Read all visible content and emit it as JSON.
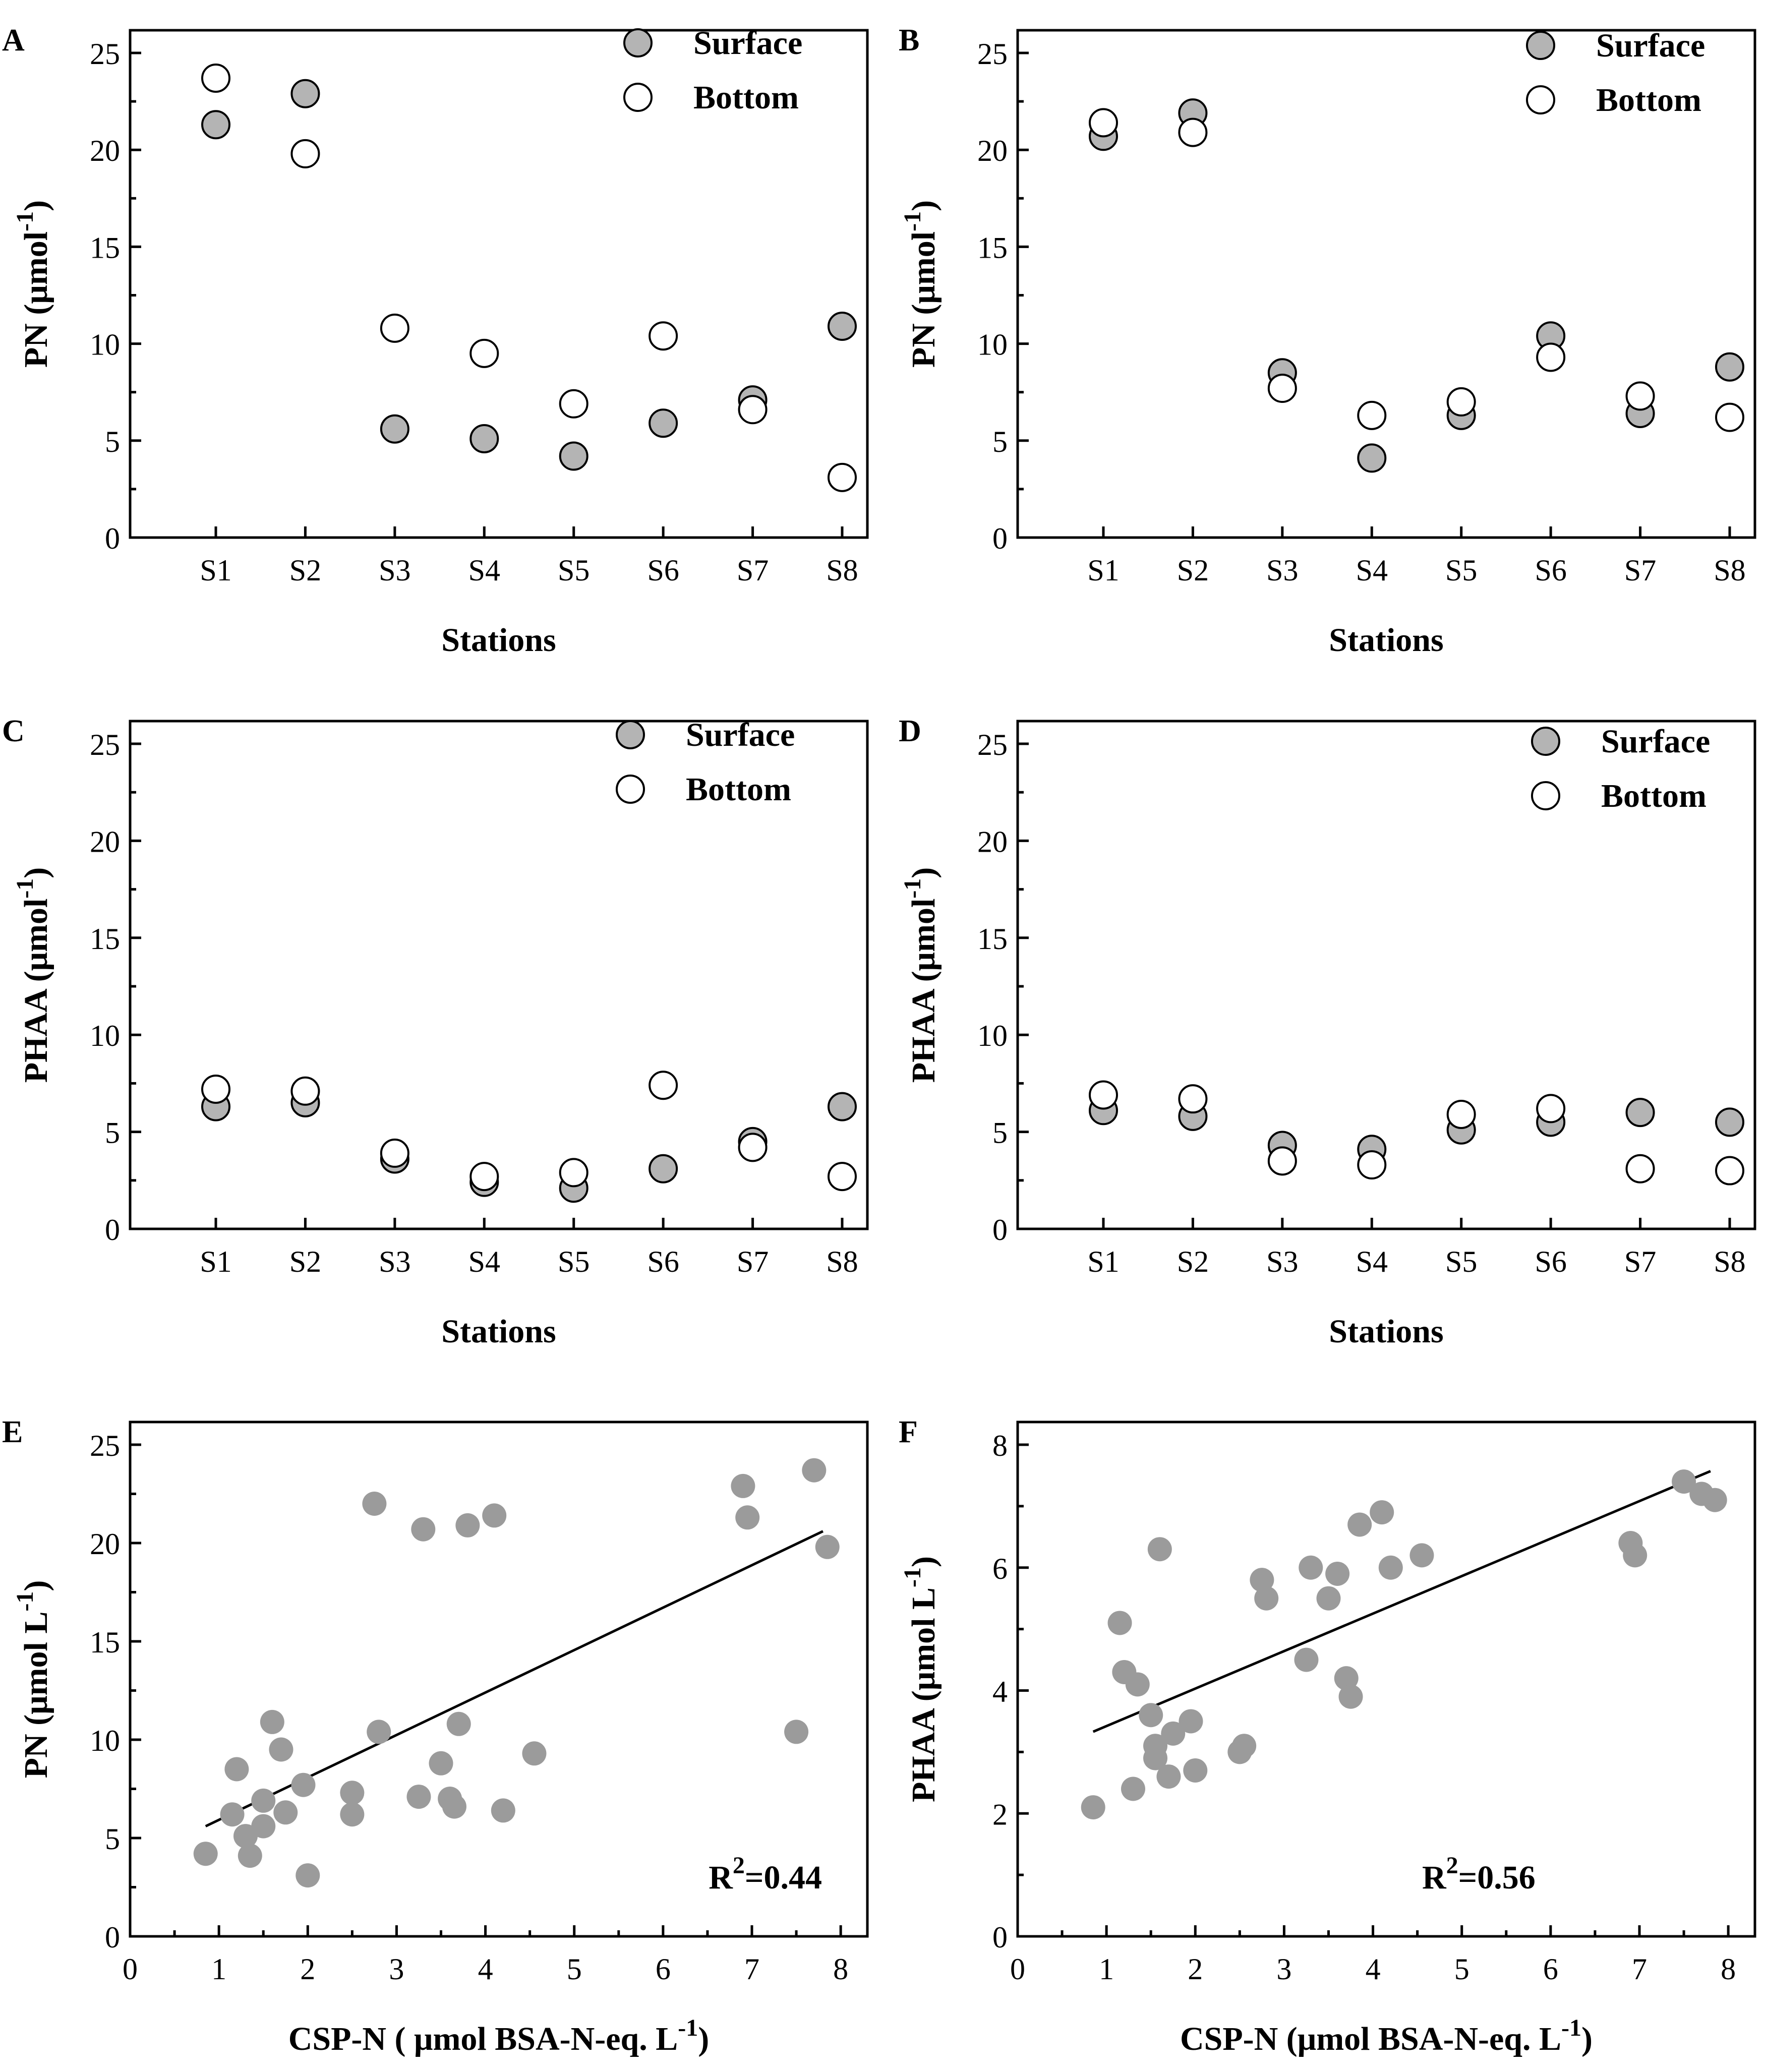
{
  "colors": {
    "surface": "#b4b4b4",
    "bottom": "#ffffff",
    "scatter": "#9b9b9b",
    "stroke": "#000000"
  },
  "chart_data": [
    {
      "panel": "A",
      "type": "scatter",
      "xlabel": "Stations",
      "ylabel": "PN (μmol",
      "ylabel_sup": "-1",
      "ylabel_tail": ")",
      "ylim": [
        0,
        25
      ],
      "yticks": [
        0,
        5,
        10,
        15,
        20,
        25
      ],
      "categories": [
        "S1",
        "S2",
        "S3",
        "S4",
        "S5",
        "S6",
        "S7",
        "S8"
      ],
      "legend_position": "top-right",
      "series": [
        {
          "name": "Surface",
          "style": "filled",
          "values": [
            21.3,
            22.9,
            5.6,
            5.1,
            4.2,
            5.9,
            7.1,
            10.9
          ]
        },
        {
          "name": "Bottom",
          "style": "open",
          "values": [
            23.7,
            19.8,
            10.8,
            9.5,
            6.9,
            10.4,
            6.6,
            3.1
          ]
        }
      ]
    },
    {
      "panel": "B",
      "type": "scatter",
      "xlabel": "Stations",
      "ylabel": "PN (μmol",
      "ylabel_sup": "-1",
      "ylabel_tail": ")",
      "ylim": [
        0,
        25
      ],
      "yticks": [
        0,
        5,
        10,
        15,
        20,
        25
      ],
      "categories": [
        "S1",
        "S2",
        "S3",
        "S4",
        "S5",
        "S6",
        "S7",
        "S8"
      ],
      "legend_position": "top-right",
      "series": [
        {
          "name": "Surface",
          "style": "filled",
          "values": [
            20.7,
            21.9,
            8.5,
            4.1,
            6.3,
            10.4,
            6.4,
            8.8
          ]
        },
        {
          "name": "Bottom",
          "style": "open",
          "values": [
            21.4,
            20.9,
            7.7,
            6.3,
            7.0,
            9.3,
            7.3,
            6.2
          ]
        }
      ]
    },
    {
      "panel": "C",
      "type": "scatter",
      "xlabel": "Stations",
      "ylabel": "PHAA (μmol",
      "ylabel_sup": "-1",
      "ylabel_tail": ")",
      "ylim": [
        0,
        25
      ],
      "yticks": [
        0,
        5,
        10,
        15,
        20,
        25
      ],
      "categories": [
        "S1",
        "S2",
        "S3",
        "S4",
        "S5",
        "S6",
        "S7",
        "S8"
      ],
      "legend_position": "top-right",
      "series": [
        {
          "name": "Surface",
          "style": "filled",
          "values": [
            6.3,
            6.5,
            3.6,
            2.4,
            2.1,
            3.1,
            4.5,
            6.3
          ]
        },
        {
          "name": "Bottom",
          "style": "open",
          "values": [
            7.2,
            7.1,
            3.9,
            2.7,
            2.9,
            7.4,
            4.2,
            2.7
          ]
        }
      ]
    },
    {
      "panel": "D",
      "type": "scatter",
      "xlabel": "Stations",
      "ylabel": "PHAA (μmol",
      "ylabel_sup": "-1",
      "ylabel_tail": ")",
      "ylim": [
        0,
        25
      ],
      "yticks": [
        0,
        5,
        10,
        15,
        20,
        25
      ],
      "categories": [
        "S1",
        "S2",
        "S3",
        "S4",
        "S5",
        "S6",
        "S7",
        "S8"
      ],
      "legend_position": "top-right",
      "series": [
        {
          "name": "Surface",
          "style": "filled",
          "values": [
            6.1,
            5.8,
            4.3,
            4.1,
            5.1,
            5.5,
            6.0,
            5.5
          ]
        },
        {
          "name": "Bottom",
          "style": "open",
          "values": [
            6.9,
            6.7,
            3.5,
            3.3,
            5.9,
            6.2,
            3.1,
            3.0
          ]
        }
      ]
    },
    {
      "panel": "E",
      "type": "scatter",
      "xlabel": "CSP-N ( μmol BSA-N-eq. L",
      "xlabel_sup": "-1",
      "xlabel_tail": ")",
      "ylabel": "PN (μmol L",
      "ylabel_sup": "-1",
      "ylabel_tail": ")",
      "xlim": [
        0,
        8.3
      ],
      "xticks": [
        0,
        1,
        2,
        3,
        4,
        5,
        6,
        7,
        8
      ],
      "ylim": [
        0,
        25
      ],
      "yticks": [
        0,
        5,
        10,
        15,
        20,
        25
      ],
      "annotation": {
        "base": "R",
        "sup": "2",
        "rest": "=0.44"
      },
      "fit": {
        "x": [
          0.85,
          7.8
        ],
        "y": [
          5.6,
          20.6
        ]
      },
      "points": [
        [
          0.85,
          4.2
        ],
        [
          1.15,
          6.2
        ],
        [
          1.2,
          8.5
        ],
        [
          1.3,
          5.1
        ],
        [
          1.35,
          4.1
        ],
        [
          1.5,
          5.6
        ],
        [
          1.5,
          6.9
        ],
        [
          1.6,
          10.9
        ],
        [
          1.7,
          9.5
        ],
        [
          1.75,
          6.3
        ],
        [
          1.95,
          7.7
        ],
        [
          2.0,
          3.1
        ],
        [
          2.5,
          6.2
        ],
        [
          2.5,
          7.3
        ],
        [
          2.75,
          22.0
        ],
        [
          2.8,
          10.4
        ],
        [
          3.25,
          7.1
        ],
        [
          3.3,
          20.7
        ],
        [
          3.5,
          8.8
        ],
        [
          3.6,
          7.0
        ],
        [
          3.65,
          6.6
        ],
        [
          3.7,
          10.8
        ],
        [
          3.8,
          20.9
        ],
        [
          4.1,
          21.4
        ],
        [
          4.2,
          6.4
        ],
        [
          4.55,
          9.3
        ],
        [
          6.9,
          22.9
        ],
        [
          6.95,
          21.3
        ],
        [
          7.5,
          10.4
        ],
        [
          7.7,
          23.7
        ],
        [
          7.85,
          19.8
        ]
      ]
    },
    {
      "panel": "F",
      "type": "scatter",
      "xlabel": "CSP-N (μmol BSA-N-eq. L",
      "xlabel_sup": "-1",
      "xlabel_tail": ")",
      "ylabel": "PHAA (μmol L",
      "ylabel_sup": "-1",
      "ylabel_tail": ")",
      "xlim": [
        0,
        8.3
      ],
      "xticks": [
        0,
        1,
        2,
        3,
        4,
        5,
        6,
        7,
        8
      ],
      "ylim": [
        0,
        8
      ],
      "yticks": [
        0,
        2,
        4,
        6,
        8
      ],
      "annotation": {
        "base": "R",
        "sup": "2",
        "rest": "=0.56"
      },
      "fit": {
        "x": [
          0.85,
          7.8
        ],
        "y": [
          3.33,
          7.57
        ]
      },
      "points": [
        [
          0.85,
          2.1
        ],
        [
          1.15,
          5.1
        ],
        [
          1.2,
          4.3
        ],
        [
          1.3,
          2.4
        ],
        [
          1.35,
          4.1
        ],
        [
          1.5,
          3.6
        ],
        [
          1.55,
          3.1
        ],
        [
          1.55,
          2.9
        ],
        [
          1.6,
          6.3
        ],
        [
          1.7,
          2.6
        ],
        [
          1.75,
          3.3
        ],
        [
          1.95,
          3.5
        ],
        [
          2.0,
          2.7
        ],
        [
          2.5,
          3.0
        ],
        [
          2.55,
          3.1
        ],
        [
          2.75,
          5.8
        ],
        [
          2.8,
          5.5
        ],
        [
          3.25,
          4.5
        ],
        [
          3.3,
          6.0
        ],
        [
          3.5,
          5.5
        ],
        [
          3.6,
          5.9
        ],
        [
          3.7,
          4.2
        ],
        [
          3.75,
          3.9
        ],
        [
          3.85,
          6.7
        ],
        [
          4.1,
          6.9
        ],
        [
          4.2,
          6.0
        ],
        [
          4.55,
          6.2
        ],
        [
          6.9,
          6.4
        ],
        [
          6.95,
          6.2
        ],
        [
          7.5,
          7.4
        ],
        [
          7.7,
          7.2
        ],
        [
          7.85,
          7.1
        ]
      ]
    }
  ]
}
